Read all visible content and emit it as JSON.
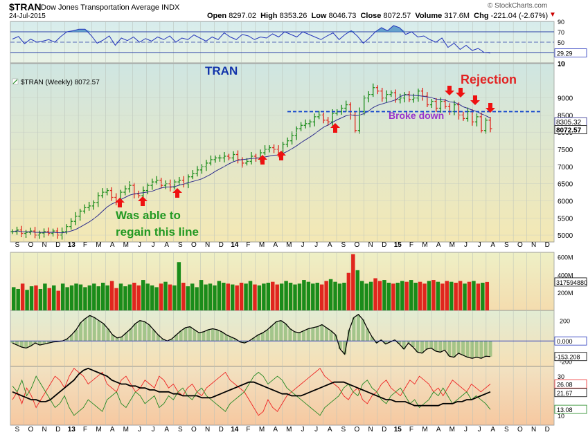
{
  "header": {
    "symbol": "$TRAN",
    "name": "Dow Jones Transportation Average",
    "exchange": "INDX",
    "date": "24-Jul-2015",
    "brand": "© StockCharts.com",
    "open_label": "Open",
    "open": "8297.02",
    "high_label": "High",
    "high": "8353.26",
    "low_label": "Low",
    "low": "8046.73",
    "close_label": "Close",
    "close": "8072.57",
    "volume_label": "Volume",
    "volume": "317.6M",
    "chg_label": "Chg",
    "chg": "-221.04 (-2.67%)"
  },
  "colors": {
    "up": "#1a8c1a",
    "down": "#e0261e",
    "rsi_line": "#2233bb",
    "arrow": "#ee1111",
    "dashed": "#1144cc",
    "title_blue": "#1133aa",
    "annot_green": "#229922",
    "annot_red": "#e22222",
    "annot_purple": "#9933cc"
  },
  "chart_data": [
    {
      "type": "line",
      "name": "rsi-panel",
      "ylim": [
        10,
        90
      ],
      "tick_labels": [
        "90",
        "70",
        "50",
        "30",
        "10"
      ],
      "value_label": "29.29",
      "current_value": 29.29,
      "values": [
        56,
        61,
        47,
        56,
        50,
        52,
        55,
        50,
        61,
        70,
        72,
        75,
        75,
        63,
        48,
        54,
        62,
        44,
        58,
        53,
        60,
        50,
        57,
        52,
        60,
        55,
        62,
        50,
        58,
        55,
        64,
        58,
        52,
        60,
        55,
        68,
        60,
        55,
        65,
        62,
        55,
        60,
        58,
        66,
        60,
        70,
        65,
        60,
        70,
        65,
        60,
        55,
        62,
        68,
        55,
        65,
        72,
        62,
        48,
        58,
        70,
        78,
        72,
        82,
        78,
        65,
        70,
        60,
        62,
        55,
        50,
        58,
        40,
        48,
        36,
        44,
        34,
        38,
        30,
        29
      ],
      "threshold_lines": [
        70,
        50,
        30
      ]
    },
    {
      "type": "bar",
      "name": "price-panel",
      "title": "TRAN",
      "legend_label": "$TRAN (Weekly) 8072.57",
      "ylim": [
        4800,
        10000
      ],
      "y_tick_labels": [
        "10",
        "9000",
        "8500",
        "8000",
        "7500",
        "7000",
        "6500",
        "6000",
        "5500",
        "5000"
      ],
      "x_tick_labels": [
        "S",
        "O",
        "N",
        "D",
        "13",
        "F",
        "M",
        "A",
        "M",
        "J",
        "J",
        "A",
        "S",
        "O",
        "N",
        "D",
        "14",
        "F",
        "M",
        "A",
        "M",
        "J",
        "J",
        "A",
        "S",
        "O",
        "N",
        "D",
        "15",
        "F",
        "M",
        "A",
        "M",
        "J",
        "J",
        "A",
        "S",
        "O",
        "N",
        "D"
      ],
      "price_tags": [
        "8305.32",
        "8072.57"
      ],
      "moving_average_value": 8305.32,
      "close_value": 8072.57,
      "closes": [
        5100,
        5150,
        5050,
        5080,
        5120,
        5000,
        5060,
        5100,
        5050,
        5120,
        5000,
        5100,
        5250,
        5400,
        5550,
        5700,
        5800,
        5850,
        5950,
        6150,
        6250,
        6300,
        6100,
        6000,
        6250,
        6350,
        6450,
        6200,
        6150,
        6300,
        6450,
        6550,
        6600,
        6450,
        6500,
        6400,
        6550,
        6600,
        6500,
        6700,
        6800,
        6900,
        7000,
        7100,
        7200,
        7250,
        7250,
        7300,
        7250,
        7350,
        7200,
        7100,
        7150,
        7300,
        7250,
        7400,
        7500,
        7550,
        7500,
        7400,
        7650,
        7750,
        7900,
        8100,
        8200,
        8250,
        8300,
        8450,
        8500,
        8350,
        8300,
        8550,
        8600,
        8700,
        8800,
        8500,
        8050,
        8600,
        9000,
        9100,
        9300,
        9200,
        9000,
        9100,
        9150,
        8950,
        9000,
        9100,
        8950,
        9000,
        9200,
        9050,
        8800,
        8900,
        8700,
        8900,
        8750,
        8600,
        8800,
        8500,
        8400,
        8600,
        8300,
        8450,
        8050,
        8350,
        8100
      ],
      "support_level": 8600,
      "annotations": [
        "Rejection",
        "Broke down",
        "Was able to",
        "regain this line"
      ]
    },
    {
      "type": "bar",
      "name": "volume-panel",
      "ylim": [
        0,
        650
      ],
      "y_tick_labels": [
        "600M",
        "400M",
        "200M"
      ],
      "value_label": "317594880",
      "values": [
        260,
        240,
        300,
        230,
        270,
        280,
        240,
        300,
        250,
        280,
        220,
        300,
        260,
        280,
        300,
        290,
        260,
        280,
        300,
        270,
        310,
        280,
        330,
        250,
        300,
        270,
        290,
        310,
        280,
        340,
        300,
        280,
        260,
        300,
        320,
        290,
        280,
        540,
        310,
        270,
        300,
        260,
        340,
        290,
        300,
        280,
        330,
        310,
        300,
        290,
        280,
        310,
        300,
        330,
        290,
        280,
        300,
        310,
        320,
        290,
        300,
        330,
        310,
        290,
        300,
        340,
        320,
        300,
        310,
        290,
        330,
        350,
        320,
        300,
        310,
        420,
        630,
        450,
        330,
        300,
        320,
        360,
        330,
        340,
        310,
        300,
        310,
        330,
        320,
        340,
        310,
        320,
        300,
        330,
        340,
        320,
        300,
        330,
        320,
        310,
        330,
        300,
        320,
        330,
        300,
        310,
        318
      ]
    },
    {
      "type": "area",
      "name": "macd-panel",
      "ylim": [
        -250,
        300
      ],
      "y_tick_labels": [
        "200",
        "0.000",
        "-153.208",
        "-200"
      ],
      "zero_label": "0.000",
      "value_label": "-153.208",
      "values": [
        -20,
        -40,
        -60,
        -70,
        -50,
        -20,
        -40,
        -30,
        -20,
        -10,
        -5,
        0,
        20,
        60,
        110,
        180,
        220,
        250,
        230,
        200,
        170,
        120,
        60,
        30,
        40,
        80,
        120,
        170,
        200,
        190,
        160,
        110,
        60,
        20,
        0,
        20,
        60,
        100,
        130,
        140,
        110,
        80,
        90,
        110,
        120,
        110,
        90,
        60,
        40,
        20,
        -10,
        -20,
        0,
        30,
        60,
        80,
        110,
        150,
        190,
        200,
        170,
        120,
        90,
        80,
        100,
        120,
        130,
        140,
        160,
        130,
        100,
        60,
        -80,
        -130,
        110,
        230,
        260,
        210,
        120,
        40,
        -20,
        10,
        -30,
        -10,
        10,
        -30,
        -80,
        -20,
        -60,
        -110,
        -120,
        -80,
        -70,
        -100,
        -110,
        -90,
        -150,
        -160,
        -120,
        -140,
        -160,
        -170,
        -160,
        -170,
        -150,
        -153
      ]
    },
    {
      "type": "line",
      "name": "adx-panel",
      "ylim": [
        5,
        35
      ],
      "y_tick_labels": [
        "30",
        "26.08",
        "21.67",
        "13.08",
        "10"
      ],
      "series_values": [
        "26.08",
        "21.67",
        "13.08"
      ],
      "plus_di_red": [
        18,
        22,
        16,
        24,
        20,
        14,
        18,
        22,
        26,
        30,
        28,
        24,
        30,
        34,
        32,
        30,
        26,
        28,
        30,
        32,
        26,
        24,
        22,
        28,
        30,
        26,
        22,
        24,
        28,
        26,
        24,
        30,
        28,
        24,
        26,
        22,
        20,
        24,
        26,
        22,
        20,
        24,
        26,
        28,
        30,
        32,
        28,
        26,
        24,
        22,
        18,
        14,
        10,
        12,
        18,
        14,
        12,
        16,
        20,
        22,
        24,
        26,
        28,
        30,
        32,
        34,
        30,
        28,
        26,
        24,
        20,
        18,
        22,
        24,
        18,
        16,
        20,
        22,
        26,
        28,
        24,
        22,
        20,
        24,
        28,
        26,
        30,
        28,
        26,
        22,
        24,
        20,
        24,
        28,
        26,
        24,
        22,
        26,
        24,
        22,
        24,
        26
      ],
      "minus_di_green": [
        25,
        22,
        28,
        20,
        24,
        30,
        26,
        22,
        18,
        14,
        16,
        20,
        14,
        10,
        12,
        14,
        18,
        16,
        14,
        12,
        18,
        20,
        22,
        16,
        14,
        18,
        22,
        20,
        16,
        18,
        20,
        14,
        16,
        20,
        18,
        22,
        24,
        20,
        18,
        22,
        24,
        20,
        18,
        16,
        14,
        12,
        16,
        18,
        20,
        22,
        26,
        30,
        32,
        30,
        26,
        28,
        30,
        28,
        24,
        22,
        20,
        18,
        16,
        14,
        12,
        10,
        14,
        16,
        18,
        20,
        24,
        26,
        22,
        20,
        26,
        28,
        24,
        22,
        18,
        16,
        20,
        22,
        24,
        20,
        16,
        18,
        14,
        16,
        18,
        22,
        20,
        24,
        20,
        16,
        18,
        20,
        22,
        18,
        20,
        18,
        16,
        13
      ],
      "adx_black": [
        22,
        21,
        20,
        19,
        18,
        18,
        17,
        17,
        18,
        20,
        22,
        24,
        26,
        28,
        31,
        33,
        34,
        33,
        32,
        31,
        30,
        28,
        27,
        26,
        26,
        25,
        25,
        24,
        24,
        23,
        23,
        22,
        22,
        22,
        21,
        21,
        20,
        20,
        20,
        20,
        19,
        19,
        19,
        20,
        21,
        22,
        23,
        24,
        25,
        26,
        27,
        27,
        26,
        25,
        24,
        23,
        22,
        21,
        21,
        20,
        20,
        20,
        21,
        22,
        23,
        24,
        25,
        26,
        27,
        27,
        27,
        26,
        25,
        24,
        23,
        22,
        21,
        20,
        19,
        18,
        18,
        17,
        17,
        17,
        16,
        15,
        15,
        15,
        15,
        15,
        15,
        16,
        16,
        16,
        17,
        17,
        18,
        18,
        19,
        20,
        21,
        22
      ]
    }
  ]
}
